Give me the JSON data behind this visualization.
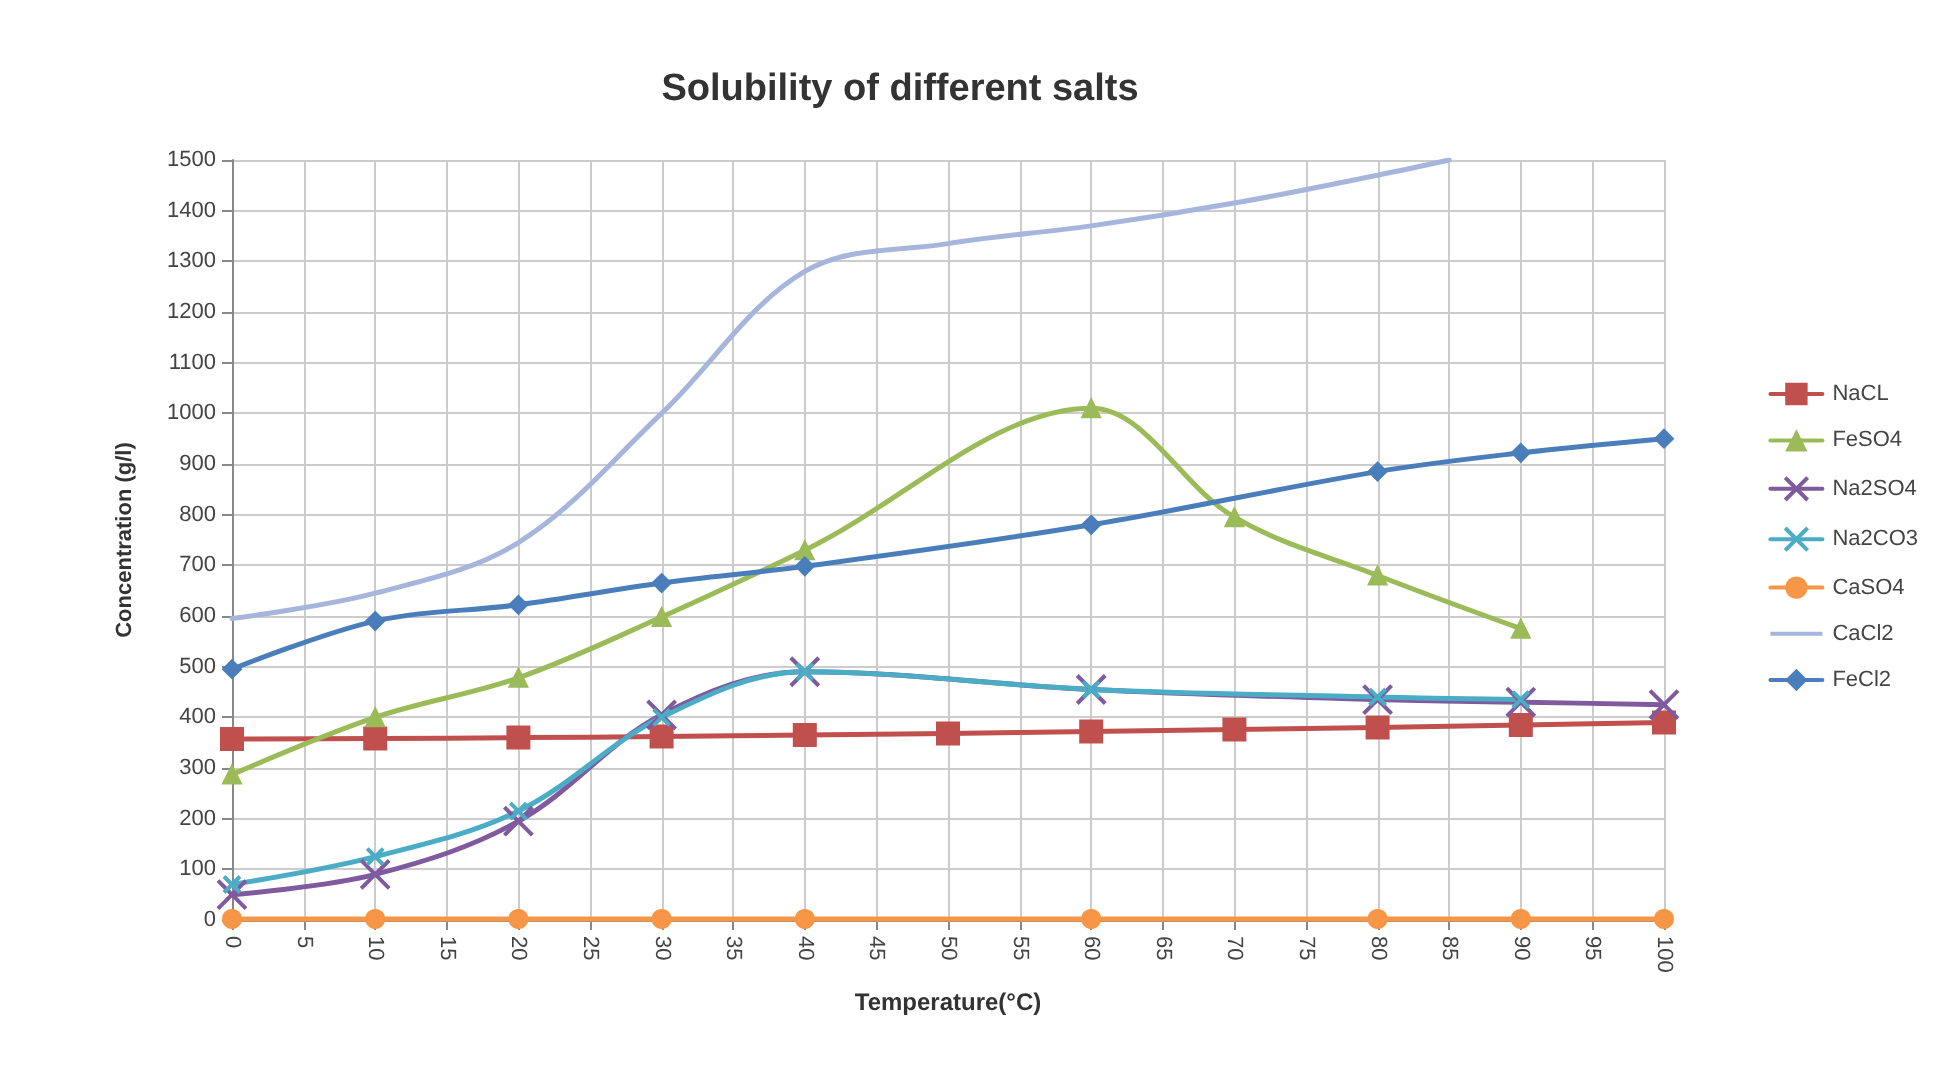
{
  "chart_data": {
    "type": "line",
    "title": "Solubility of different salts",
    "xlabel": "Temperature(°C)",
    "ylabel": "Concentration (g/l)",
    "xlim": [
      0,
      100
    ],
    "xticks": [
      0,
      5,
      10,
      15,
      20,
      25,
      30,
      35,
      40,
      45,
      50,
      55,
      60,
      65,
      70,
      75,
      80,
      85,
      90,
      95,
      100
    ],
    "ylim": [
      0,
      1500
    ],
    "yticks": [
      0,
      100,
      200,
      300,
      400,
      500,
      600,
      700,
      800,
      900,
      1000,
      1100,
      1200,
      1300,
      1400,
      1500
    ],
    "grid": true,
    "legend": "right",
    "line_style": "solid",
    "series": [
      {
        "name": "NaCL",
        "color": "#c0504d",
        "marker": "square",
        "x": [
          0,
          10,
          20,
          30,
          40,
          50,
          60,
          70,
          80,
          90,
          100
        ],
        "values": [
          357,
          358,
          360,
          362,
          365,
          368,
          372,
          376,
          380,
          385,
          390
        ]
      },
      {
        "name": "FeSO4",
        "color": "#9bbb59",
        "marker": "triangle",
        "x": [
          0,
          10,
          20,
          30,
          40,
          60,
          70,
          80,
          90
        ],
        "values": [
          287,
          400,
          478,
          598,
          730,
          1010,
          795,
          680,
          575
        ]
      },
      {
        "name": "Na2SO4",
        "color": "#7f5a9e",
        "marker": "cross",
        "x": [
          0,
          10,
          20,
          30,
          40,
          60,
          80,
          90,
          100
        ],
        "values": [
          50,
          90,
          195,
          405,
          490,
          455,
          435,
          430,
          425
        ]
      },
      {
        "name": "Na2CO3",
        "color": "#4bacc6",
        "marker": "cross",
        "x": [
          0,
          10,
          20,
          30,
          40,
          60,
          80,
          90
        ],
        "values": [
          70,
          125,
          215,
          400,
          490,
          455,
          440,
          435
        ]
      },
      {
        "name": "CaSO4",
        "color": "#f79646",
        "marker": "circle",
        "x": [
          0,
          10,
          20,
          30,
          40,
          60,
          80,
          90,
          100
        ],
        "values": [
          2,
          2,
          2,
          2,
          2,
          2,
          2,
          2,
          2
        ]
      },
      {
        "name": "CaCl2",
        "color": "#a5b5dc",
        "marker": "none",
        "x": [
          0,
          10,
          20,
          30,
          40,
          50,
          60,
          70,
          80,
          85
        ],
        "values": [
          595,
          645,
          745,
          1000,
          1280,
          1335,
          1370,
          1415,
          1470,
          1500
        ]
      },
      {
        "name": "FeCl2",
        "color": "#4a7ebb",
        "marker": "diamond",
        "x": [
          0,
          10,
          20,
          30,
          40,
          60,
          80,
          90,
          100
        ],
        "values": [
          495,
          590,
          622,
          665,
          698,
          780,
          885,
          922,
          950
        ]
      }
    ]
  }
}
